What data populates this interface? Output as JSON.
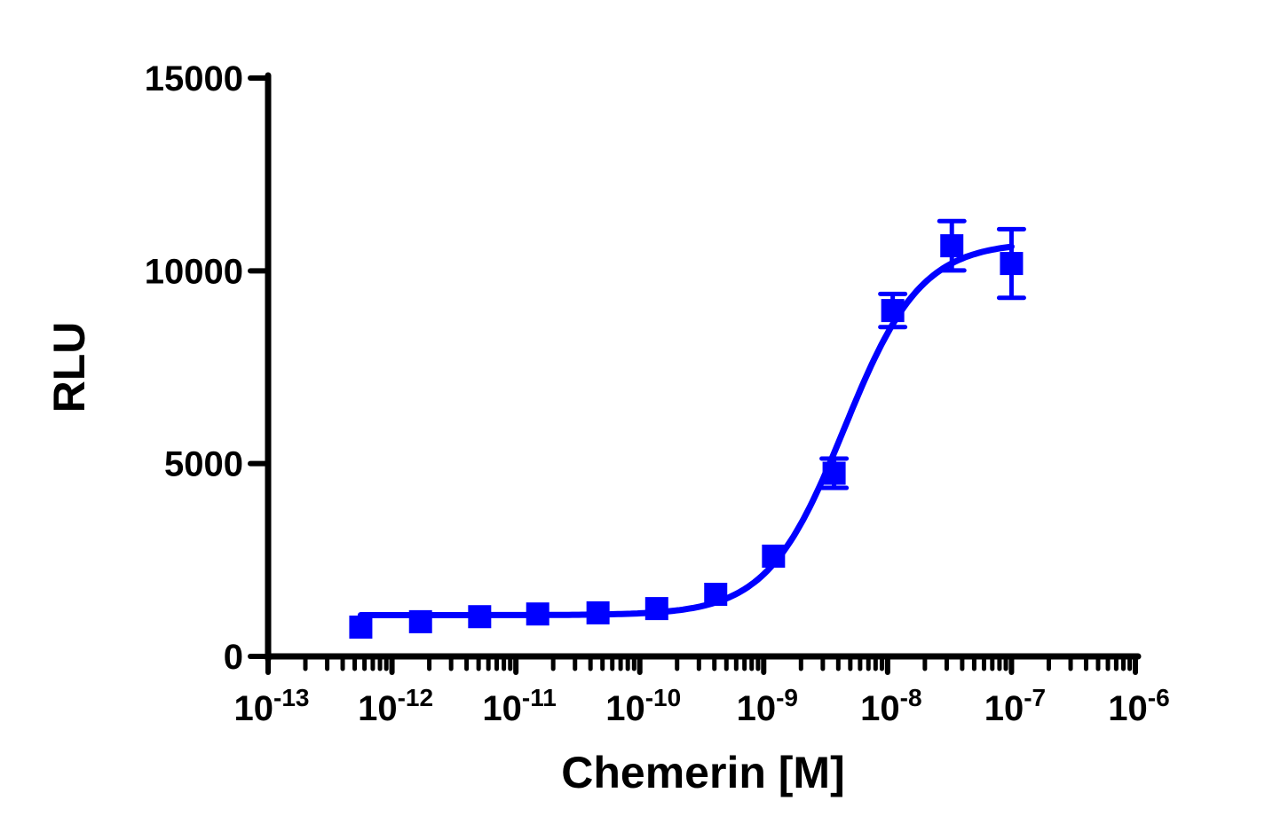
{
  "chart_data": {
    "type": "scatter",
    "title": "",
    "xlabel": "Chemerin [M]",
    "ylabel": "RLU",
    "x_scale": "log10",
    "xlim": [
      1e-13,
      1e-06
    ],
    "ylim": [
      0,
      15000
    ],
    "x_ticks": [
      {
        "base": "10",
        "exp": "-13"
      },
      {
        "base": "10",
        "exp": "-12"
      },
      {
        "base": "10",
        "exp": "-11"
      },
      {
        "base": "10",
        "exp": "-10"
      },
      {
        "base": "10",
        "exp": "-9"
      },
      {
        "base": "10",
        "exp": "-8"
      },
      {
        "base": "10",
        "exp": "-7"
      },
      {
        "base": "10",
        "exp": "-6"
      }
    ],
    "y_ticks": [
      "0",
      "5000",
      "10000",
      "15000"
    ],
    "y_tick_values": [
      0,
      5000,
      10000,
      15000
    ],
    "grid": false,
    "color": "#0000ff",
    "marker": "square",
    "points": [
      {
        "x": 5.6e-13,
        "y": 760,
        "err": 0
      },
      {
        "x": 1.7e-12,
        "y": 900,
        "err": 0
      },
      {
        "x": 5.1e-12,
        "y": 1030,
        "err": 0
      },
      {
        "x": 1.5e-11,
        "y": 1100,
        "err": 0
      },
      {
        "x": 4.6e-11,
        "y": 1130,
        "err": 0
      },
      {
        "x": 1.37e-10,
        "y": 1240,
        "err": 0
      },
      {
        "x": 4.1e-10,
        "y": 1610,
        "err": 0
      },
      {
        "x": 1.2e-09,
        "y": 2600,
        "err": 0
      },
      {
        "x": 3.7e-09,
        "y": 4750,
        "err": 380
      },
      {
        "x": 1.1e-08,
        "y": 8970,
        "err": 430
      },
      {
        "x": 3.3e-08,
        "y": 10650,
        "err": 640
      },
      {
        "x": 1e-07,
        "y": 10190,
        "err": 890
      }
    ],
    "fit": {
      "model": "four-parameter logistic",
      "bottom": 1070,
      "top": 10750,
      "logEC50": -8.35,
      "hill": 1.4,
      "x_range": [
        5.6e-13,
        1e-07
      ]
    }
  }
}
